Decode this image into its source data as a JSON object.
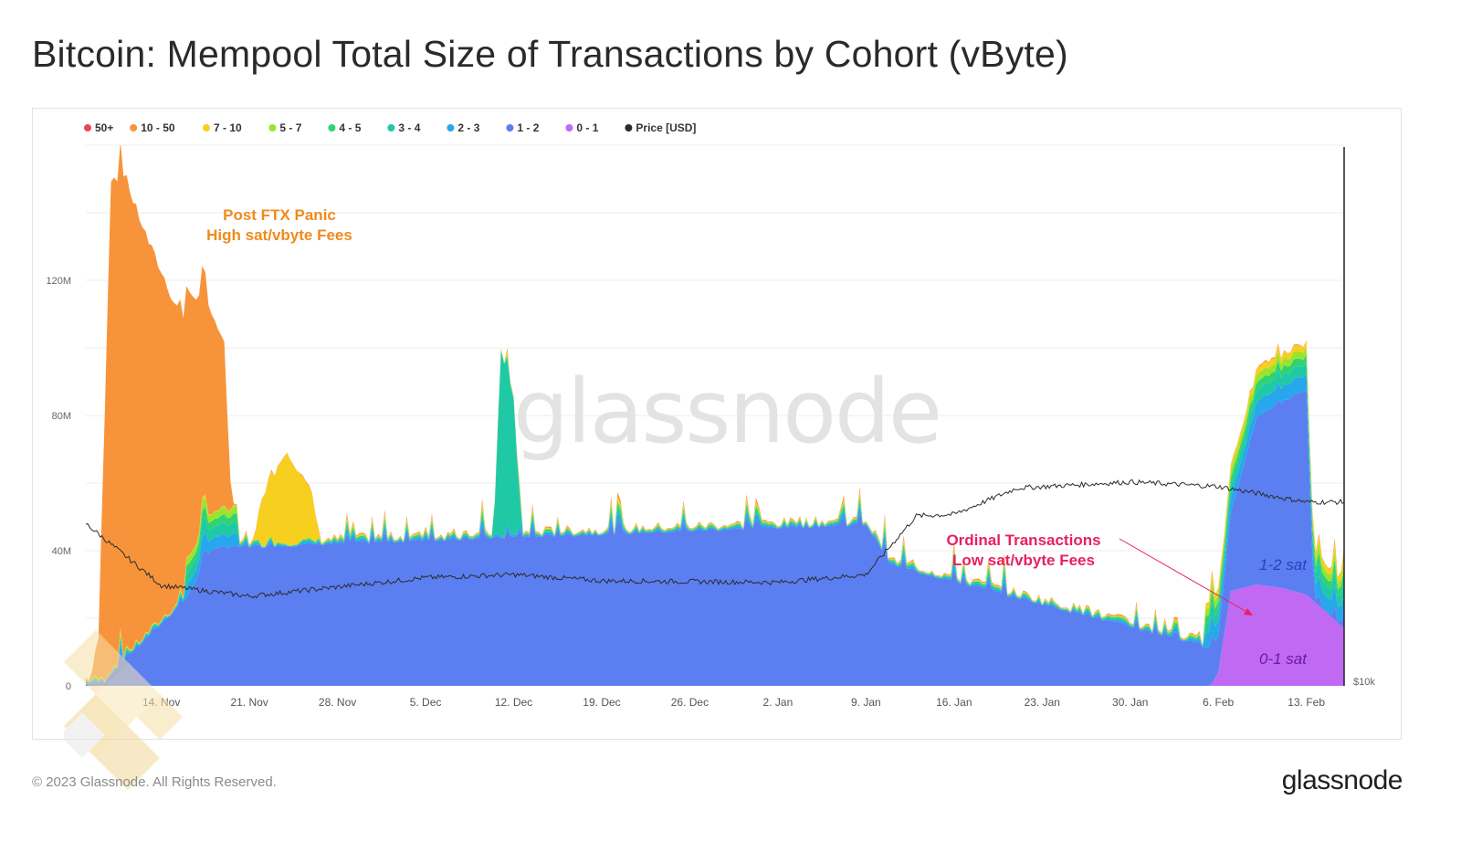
{
  "page": {
    "title": "Bitcoin: Mempool Total Size of Transactions by Cohort (vByte)",
    "copyright": "© 2023 Glassnode. All Rights Reserved.",
    "brand": "glassnode",
    "watermark": "glassnode"
  },
  "chart_data": {
    "type": "area",
    "title": "Bitcoin: Mempool Total Size of Transactions by Cohort (vByte)",
    "stacked": true,
    "grid": true,
    "legend_position": "top-left",
    "x_ticks": [
      "14. Nov",
      "21. Nov",
      "28. Nov",
      "5. Dec",
      "12. Dec",
      "19. Dec",
      "26. Dec",
      "2. Jan",
      "9. Jan",
      "16. Jan",
      "23. Jan",
      "30. Jan",
      "6. Feb",
      "13. Feb"
    ],
    "y_left": {
      "ticks": [
        "0",
        "40M",
        "80M",
        "120M"
      ],
      "ylim": [
        0,
        160000000
      ]
    },
    "y_right": {
      "ticks": [
        "$10k"
      ]
    },
    "legend": [
      {
        "name": "50+",
        "color": "#f0465a"
      },
      {
        "name": "10 - 50",
        "color": "#f7943b"
      },
      {
        "name": "7 - 10",
        "color": "#f7cf1e"
      },
      {
        "name": "5 - 7",
        "color": "#9be42e"
      },
      {
        "name": "4 - 5",
        "color": "#2fd374"
      },
      {
        "name": "3 - 4",
        "color": "#20c9a6"
      },
      {
        "name": "2 - 3",
        "color": "#27a7ec"
      },
      {
        "name": "1 - 2",
        "color": "#5b7ff0"
      },
      {
        "name": "0 - 1",
        "color": "#c069f2"
      },
      {
        "name": "Price [USD]",
        "color": "#2b2b2b"
      }
    ],
    "series": [
      {
        "name": "0 - 1",
        "x": [
          "6. Feb",
          "7. Feb",
          "9. Feb",
          "11. Feb",
          "13. Feb",
          "16. Feb"
        ],
        "values": [
          4000000,
          28000000,
          30000000,
          29000000,
          27000000,
          17000000
        ]
      },
      {
        "name": "1 - 2",
        "x": [
          "10. Nov",
          "16. Nov",
          "18. Nov",
          "9. Jan",
          "11. Jan",
          "6. Feb",
          "9. Feb",
          "13. Feb"
        ],
        "values": [
          3000000,
          25000000,
          40000000,
          47000000,
          35000000,
          10000000,
          48000000,
          60000000
        ]
      },
      {
        "name": "3 - 4",
        "x": [
          "11. Dec",
          "12. Dec"
        ],
        "values": [
          55000000,
          40000000
        ]
      },
      {
        "name": "7 - 10",
        "x": [
          "22. Nov",
          "24. Nov",
          "26. Nov"
        ],
        "values": [
          14000000,
          27000000,
          13000000
        ]
      },
      {
        "name": "10 - 50",
        "x": [
          "9. Nov",
          "10. Nov",
          "11. Nov",
          "13. Nov",
          "15. Nov",
          "17. Nov",
          "19. Nov"
        ],
        "values": [
          12000000,
          145000000,
          142000000,
          115000000,
          90000000,
          70000000,
          48000000
        ]
      },
      {
        "name": "Price [USD]",
        "x": [
          "8. Nov",
          "14. Nov",
          "21. Nov",
          "5. Dec",
          "12. Dec",
          "19. Dec",
          "2. Jan",
          "9. Jan",
          "13. Jan",
          "16. Jan",
          "21. Jan",
          "30. Jan",
          "6. Feb",
          "13. Feb"
        ],
        "values": [
          20500,
          16500,
          15800,
          17000,
          17200,
          16800,
          16700,
          17200,
          21000,
          21100,
          22800,
          23200,
          22900,
          21900
        ]
      }
    ],
    "annotations": [
      {
        "text": "Post FTX Panic",
        "color": "#f08a1c"
      },
      {
        "text": "High sat/vbyte Fees",
        "color": "#f08a1c"
      },
      {
        "text": "Ordinal Transactions",
        "color": "#e8215e"
      },
      {
        "text": "Low sat/vbyte Fees",
        "color": "#e8215e"
      },
      {
        "text": "1-2 sat",
        "color": "#2b3fc7"
      },
      {
        "text": "0-1 sat",
        "color": "#6a1c9e"
      }
    ]
  }
}
